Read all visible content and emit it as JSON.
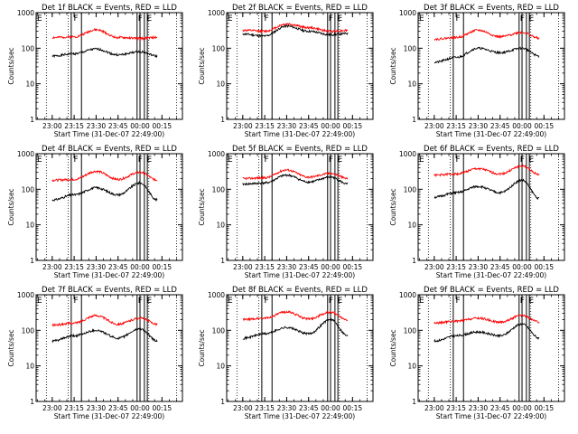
{
  "chart_data": [
    {
      "type": "line",
      "title": "Det 1f BLACK = Events, RED = LLD",
      "xlabel": "Start Time (31-Dec-07 22:49:00)",
      "ylabel": "Counts/sec",
      "yscale": "log",
      "ylim": [
        1,
        1000
      ],
      "ytick_labels": [
        "1",
        "10",
        "100",
        "1000"
      ],
      "xtick_labels": [
        "23:00",
        "23:15",
        "23:30",
        "23:45",
        "00:00",
        "00:15"
      ],
      "markers": [
        "E",
        "F",
        "F",
        "E"
      ],
      "series": [
        {
          "color": "#000000",
          "values": [
            {
              "x": "23:00",
              "y": 60
            },
            {
              "x": "23:15",
              "y": 70
            },
            {
              "x": "23:30",
              "y": 95
            },
            {
              "x": "23:45",
              "y": 65
            },
            {
              "x": "00:00",
              "y": 80
            },
            {
              "x": "00:12",
              "y": 60
            }
          ]
        },
        {
          "color": "#ff0000",
          "values": [
            {
              "x": "23:00",
              "y": 200
            },
            {
              "x": "23:15",
              "y": 210
            },
            {
              "x": "23:30",
              "y": 330
            },
            {
              "x": "23:45",
              "y": 200
            },
            {
              "x": "00:00",
              "y": 190
            },
            {
              "x": "00:12",
              "y": 200
            }
          ]
        }
      ]
    },
    {
      "type": "line",
      "title": "Det 2f BLACK = Events, RED = LLD",
      "xlabel": "Start Time (31-Dec-07 22:49:00)",
      "ylabel": "Counts/sec",
      "yscale": "log",
      "ylim": [
        1,
        1000
      ],
      "ytick_labels": [
        "1",
        "10",
        "100",
        "1000"
      ],
      "xtick_labels": [
        "23:00",
        "23:15",
        "23:30",
        "23:45",
        "00:00",
        "00:15"
      ],
      "markers": [
        "E",
        "F",
        "F",
        "E"
      ],
      "series": [
        {
          "color": "#000000",
          "values": [
            {
              "x": "23:00",
              "y": 250
            },
            {
              "x": "23:15",
              "y": 220
            },
            {
              "x": "23:30",
              "y": 420
            },
            {
              "x": "23:45",
              "y": 300
            },
            {
              "x": "00:00",
              "y": 240
            },
            {
              "x": "00:12",
              "y": 260
            }
          ]
        },
        {
          "color": "#ff0000",
          "values": [
            {
              "x": "23:00",
              "y": 320
            },
            {
              "x": "23:15",
              "y": 300
            },
            {
              "x": "23:30",
              "y": 480
            },
            {
              "x": "23:45",
              "y": 380
            },
            {
              "x": "00:00",
              "y": 300
            },
            {
              "x": "00:12",
              "y": 320
            }
          ]
        }
      ]
    },
    {
      "type": "line",
      "title": "Det 3f BLACK = Events, RED = LLD",
      "xlabel": "Start Time (31-Dec-07 22:49:00)",
      "ylabel": "Counts/sec",
      "yscale": "log",
      "ylim": [
        1,
        1000
      ],
      "ytick_labels": [
        "1",
        "10",
        "100",
        "1000"
      ],
      "xtick_labels": [
        "23:00",
        "23:15",
        "23:30",
        "23:45",
        "00:00",
        "00:15"
      ],
      "markers": [
        "E",
        "F",
        "F",
        "E"
      ],
      "series": [
        {
          "color": "#000000",
          "values": [
            {
              "x": "23:00",
              "y": 40
            },
            {
              "x": "23:15",
              "y": 55
            },
            {
              "x": "23:30",
              "y": 100
            },
            {
              "x": "23:45",
              "y": 75
            },
            {
              "x": "00:00",
              "y": 100
            },
            {
              "x": "00:12",
              "y": 60
            }
          ]
        },
        {
          "color": "#ff0000",
          "values": [
            {
              "x": "23:00",
              "y": 180
            },
            {
              "x": "23:15",
              "y": 200
            },
            {
              "x": "23:30",
              "y": 320
            },
            {
              "x": "23:45",
              "y": 210
            },
            {
              "x": "00:00",
              "y": 280
            },
            {
              "x": "00:12",
              "y": 190
            }
          ]
        }
      ]
    },
    {
      "type": "line",
      "title": "Det 4f BLACK = Events, RED = LLD",
      "xlabel": "Start Time (31-Dec-07 22:49:00)",
      "ylabel": "Counts/sec",
      "yscale": "log",
      "ylim": [
        1,
        1000
      ],
      "ytick_labels": [
        "1",
        "10",
        "100",
        "1000"
      ],
      "xtick_labels": [
        "23:00",
        "23:15",
        "23:30",
        "23:45",
        "00:00",
        "00:15"
      ],
      "markers": [
        "E",
        "F",
        "F",
        "E"
      ],
      "series": [
        {
          "color": "#000000",
          "values": [
            {
              "x": "23:00",
              "y": 50
            },
            {
              "x": "23:15",
              "y": 70
            },
            {
              "x": "23:30",
              "y": 110
            },
            {
              "x": "23:45",
              "y": 70
            },
            {
              "x": "00:00",
              "y": 150
            },
            {
              "x": "00:12",
              "y": 50
            }
          ]
        },
        {
          "color": "#ff0000",
          "values": [
            {
              "x": "23:00",
              "y": 180
            },
            {
              "x": "23:15",
              "y": 190
            },
            {
              "x": "23:30",
              "y": 320
            },
            {
              "x": "23:45",
              "y": 190
            },
            {
              "x": "00:00",
              "y": 300
            },
            {
              "x": "00:12",
              "y": 180
            }
          ]
        }
      ]
    },
    {
      "type": "line",
      "title": "Det 5f BLACK = Events, RED = LLD",
      "xlabel": "Start Time (31-Dec-07 22:49:00)",
      "ylabel": "Counts/sec",
      "yscale": "log",
      "ylim": [
        1,
        1000
      ],
      "ytick_labels": [
        "1",
        "10",
        "100",
        "1000"
      ],
      "xtick_labels": [
        "23:00",
        "23:15",
        "23:30",
        "23:45",
        "00:00",
        "00:15"
      ],
      "markers": [
        "E",
        "F",
        "F",
        "E"
      ],
      "series": [
        {
          "color": "#000000",
          "values": [
            {
              "x": "23:00",
              "y": 140
            },
            {
              "x": "23:15",
              "y": 150
            },
            {
              "x": "23:30",
              "y": 250
            },
            {
              "x": "23:45",
              "y": 160
            },
            {
              "x": "00:00",
              "y": 220
            },
            {
              "x": "00:12",
              "y": 140
            }
          ]
        },
        {
          "color": "#ff0000",
          "values": [
            {
              "x": "23:00",
              "y": 200
            },
            {
              "x": "23:15",
              "y": 210
            },
            {
              "x": "23:30",
              "y": 350
            },
            {
              "x": "23:45",
              "y": 220
            },
            {
              "x": "00:00",
              "y": 280
            },
            {
              "x": "00:12",
              "y": 200
            }
          ]
        }
      ]
    },
    {
      "type": "line",
      "title": "Det 6f BLACK = Events, RED = LLD",
      "xlabel": "Start Time (31-Dec-07 22:49:00)",
      "ylabel": "Counts/sec",
      "yscale": "log",
      "ylim": [
        1,
        1000
      ],
      "ytick_labels": [
        "1",
        "10",
        "100",
        "1000"
      ],
      "xtick_labels": [
        "23:00",
        "23:15",
        "23:30",
        "23:45",
        "00:00",
        "00:15"
      ],
      "markers": [
        "E",
        "F",
        "F",
        "E"
      ],
      "series": [
        {
          "color": "#000000",
          "values": [
            {
              "x": "23:00",
              "y": 60
            },
            {
              "x": "23:15",
              "y": 80
            },
            {
              "x": "23:30",
              "y": 120
            },
            {
              "x": "23:45",
              "y": 80
            },
            {
              "x": "00:00",
              "y": 180
            },
            {
              "x": "00:12",
              "y": 55
            }
          ]
        },
        {
          "color": "#ff0000",
          "values": [
            {
              "x": "23:00",
              "y": 250
            },
            {
              "x": "23:15",
              "y": 270
            },
            {
              "x": "23:30",
              "y": 380
            },
            {
              "x": "23:45",
              "y": 270
            },
            {
              "x": "00:00",
              "y": 450
            },
            {
              "x": "00:12",
              "y": 260
            }
          ]
        }
      ]
    },
    {
      "type": "line",
      "title": "Det 7f BLACK = Events, RED = LLD",
      "xlabel": "Start Time (31-Dec-07 22:49:00)",
      "ylabel": "Counts/sec",
      "yscale": "log",
      "ylim": [
        1,
        1000
      ],
      "ytick_labels": [
        "1",
        "10",
        "100",
        "1000"
      ],
      "xtick_labels": [
        "23:00",
        "23:15",
        "23:30",
        "23:45",
        "00:00",
        "00:15"
      ],
      "markers": [
        "E",
        "F",
        "F",
        "E"
      ],
      "series": [
        {
          "color": "#000000",
          "values": [
            {
              "x": "23:00",
              "y": 50
            },
            {
              "x": "23:15",
              "y": 70
            },
            {
              "x": "23:30",
              "y": 100
            },
            {
              "x": "23:45",
              "y": 60
            },
            {
              "x": "00:00",
              "y": 110
            },
            {
              "x": "00:12",
              "y": 50
            }
          ]
        },
        {
          "color": "#ff0000",
          "values": [
            {
              "x": "23:00",
              "y": 140
            },
            {
              "x": "23:15",
              "y": 160
            },
            {
              "x": "23:30",
              "y": 260
            },
            {
              "x": "23:45",
              "y": 150
            },
            {
              "x": "00:00",
              "y": 220
            },
            {
              "x": "00:12",
              "y": 150
            }
          ]
        }
      ]
    },
    {
      "type": "line",
      "title": "Det 8f BLACK = Events, RED = LLD",
      "xlabel": "Start Time (31-Dec-07 22:49:00)",
      "ylabel": "Counts/sec",
      "yscale": "log",
      "ylim": [
        1,
        1000
      ],
      "ytick_labels": [
        "1",
        "10",
        "100",
        "1000"
      ],
      "xtick_labels": [
        "23:00",
        "23:15",
        "23:30",
        "23:45",
        "00:00",
        "00:15"
      ],
      "markers": [
        "E",
        "F",
        "F",
        "E"
      ],
      "series": [
        {
          "color": "#000000",
          "values": [
            {
              "x": "23:00",
              "y": 60
            },
            {
              "x": "23:15",
              "y": 80
            },
            {
              "x": "23:30",
              "y": 120
            },
            {
              "x": "23:45",
              "y": 80
            },
            {
              "x": "00:00",
              "y": 200
            },
            {
              "x": "00:12",
              "y": 70
            }
          ]
        },
        {
          "color": "#ff0000",
          "values": [
            {
              "x": "23:00",
              "y": 200
            },
            {
              "x": "23:15",
              "y": 220
            },
            {
              "x": "23:30",
              "y": 330
            },
            {
              "x": "23:45",
              "y": 210
            },
            {
              "x": "00:00",
              "y": 320
            },
            {
              "x": "00:12",
              "y": 200
            }
          ]
        }
      ]
    },
    {
      "type": "line",
      "title": "Det 9f BLACK = Events, RED = LLD",
      "xlabel": "Start Time (31-Dec-07 22:49:00)",
      "ylabel": "Counts/sec",
      "yscale": "log",
      "ylim": [
        1,
        1000
      ],
      "ytick_labels": [
        "1",
        "10",
        "100",
        "1000"
      ],
      "xtick_labels": [
        "23:00",
        "23:15",
        "23:30",
        "23:45",
        "00:00",
        "00:15"
      ],
      "markers": [
        "E",
        "F",
        "F",
        "E"
      ],
      "series": [
        {
          "color": "#000000",
          "values": [
            {
              "x": "23:00",
              "y": 50
            },
            {
              "x": "23:15",
              "y": 70
            },
            {
              "x": "23:30",
              "y": 90
            },
            {
              "x": "23:45",
              "y": 70
            },
            {
              "x": "00:00",
              "y": 150
            },
            {
              "x": "00:12",
              "y": 60
            }
          ]
        },
        {
          "color": "#ff0000",
          "values": [
            {
              "x": "23:00",
              "y": 160
            },
            {
              "x": "23:15",
              "y": 180
            },
            {
              "x": "23:30",
              "y": 220
            },
            {
              "x": "23:45",
              "y": 170
            },
            {
              "x": "00:00",
              "y": 260
            },
            {
              "x": "00:12",
              "y": 170
            }
          ]
        }
      ]
    }
  ]
}
